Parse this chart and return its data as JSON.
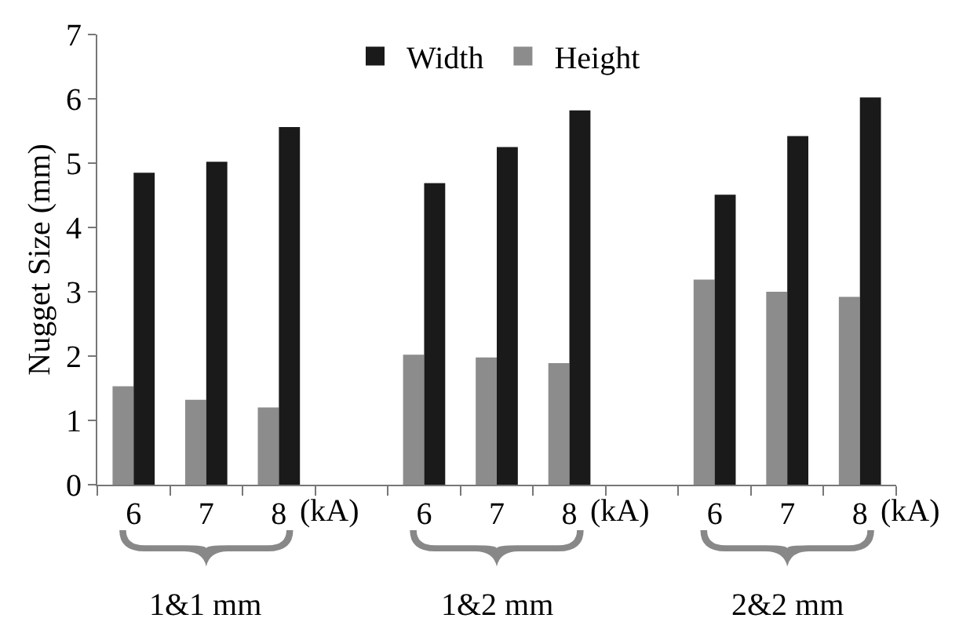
{
  "chart_data": {
    "type": "bar",
    "ylabel": "Nugget Size (mm)",
    "categories": [
      "6",
      "7",
      "8",
      null,
      "6",
      "7",
      "8",
      null,
      "6",
      "7",
      "8"
    ],
    "series": [
      {
        "name": "Width",
        "color": "#1a1a1a",
        "values": [
          4.85,
          5.02,
          5.56,
          null,
          4.69,
          5.25,
          5.82,
          null,
          4.51,
          5.42,
          6.02
        ]
      },
      {
        "name": "Height",
        "color": "#8c8c8c",
        "values": [
          1.53,
          1.32,
          1.2,
          null,
          2.02,
          1.98,
          1.89,
          null,
          3.19,
          3.0,
          2.92
        ]
      }
    ],
    "ylim": [
      0,
      7
    ],
    "yticks": [
      0,
      1,
      2,
      3,
      4,
      5,
      6,
      7
    ],
    "legend": "top",
    "annotations": [
      "(kA)",
      "(kA)",
      "(kA)",
      "1&1 mm",
      "1&2 mm",
      "2&2 mm"
    ]
  }
}
